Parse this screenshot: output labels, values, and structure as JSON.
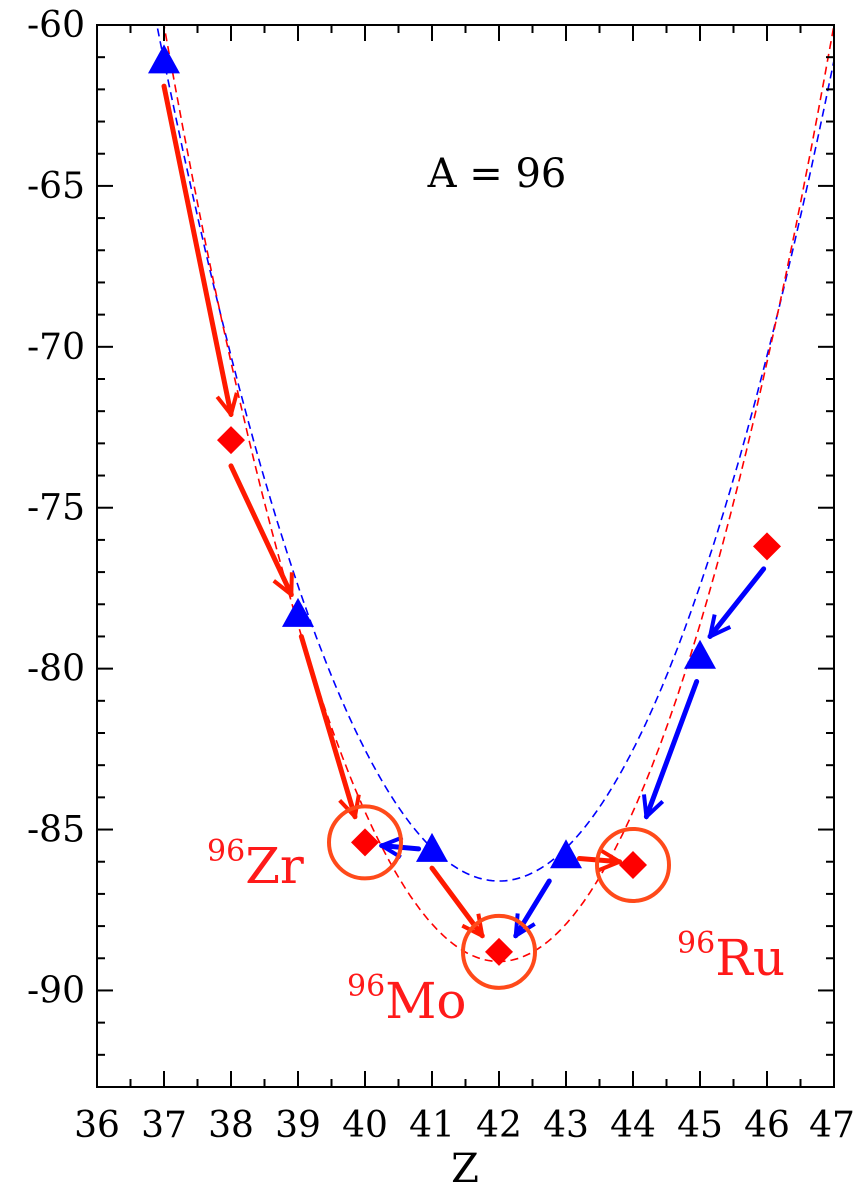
{
  "chart_data": {
    "type": "scatter",
    "title": "",
    "xlabel": "Z",
    "ylabel": "",
    "xlim": [
      36,
      47
    ],
    "ylim": [
      -93,
      -60
    ],
    "x_ticks": [
      36,
      37,
      38,
      39,
      40,
      41,
      42,
      43,
      44,
      45,
      46,
      47
    ],
    "y_ticks": [
      -60,
      -65,
      -70,
      -75,
      -80,
      -85,
      -90
    ],
    "x_tick_labels": [
      "36",
      "37",
      "38",
      "39",
      "40",
      "41",
      "42",
      "43",
      "44",
      "45",
      "46",
      "47"
    ],
    "y_tick_labels": [
      "-60",
      "-65",
      "-70",
      "-75",
      "-80",
      "-85",
      "-90"
    ],
    "grid": false,
    "annotation": "A = 96",
    "series": [
      {
        "marker": "triangle",
        "color": "#0000ff",
        "points": [
          {
            "x": 37,
            "y": -61.1
          },
          {
            "x": 39,
            "y": -78.3
          },
          {
            "x": 41,
            "y": -85.6
          },
          {
            "x": 43,
            "y": -85.8
          },
          {
            "x": 45,
            "y": -79.6
          }
        ]
      },
      {
        "marker": "diamond",
        "color": "#ff0000",
        "points": [
          {
            "x": 38,
            "y": -72.9
          },
          {
            "x": 40,
            "y": -85.4
          },
          {
            "x": 42,
            "y": -88.8
          },
          {
            "x": 44,
            "y": -86.1
          },
          {
            "x": 46,
            "y": -76.2
          }
        ]
      }
    ],
    "curves": [
      {
        "color": "#0000ff",
        "style": "dashed",
        "vertex_x": 42.0,
        "vertex_y": -86.6,
        "through": {
          "x": 37,
          "y": -61.1
        }
      },
      {
        "color": "#ff0000",
        "style": "dashed",
        "vertex_x": 42.0,
        "vertex_y": -89.1,
        "through": {
          "x": 37,
          "y": -60.0
        }
      }
    ],
    "arrows": [
      {
        "color": "#ff1a00",
        "from": [
          37,
          -61.9
        ],
        "to": [
          38,
          -72.1
        ]
      },
      {
        "color": "#ff1a00",
        "from": [
          38,
          -73.7
        ],
        "to": [
          38.9,
          -77.7
        ]
      },
      {
        "color": "#ff1a00",
        "from": [
          39.05,
          -79.0
        ],
        "to": [
          39.85,
          -84.6
        ]
      },
      {
        "color": "#ff1a00",
        "from": [
          41.0,
          -86.2
        ],
        "to": [
          41.75,
          -88.3
        ]
      },
      {
        "color": "#ff1a00",
        "from": [
          43.2,
          -85.9
        ],
        "to": [
          43.8,
          -86.0
        ]
      },
      {
        "color": "#0000ff",
        "from": [
          40.8,
          -85.6
        ],
        "to": [
          40.25,
          -85.5
        ]
      },
      {
        "color": "#0000ff",
        "from": [
          42.75,
          -86.6
        ],
        "to": [
          42.25,
          -88.3
        ]
      },
      {
        "color": "#0000ff",
        "from": [
          44.95,
          -80.4
        ],
        "to": [
          44.2,
          -84.6
        ]
      },
      {
        "color": "#0000ff",
        "from": [
          45.95,
          -76.9
        ],
        "to": [
          45.15,
          -79.0
        ]
      }
    ],
    "highlighted": [
      {
        "x": 40,
        "y": -85.4,
        "mass": "96",
        "symbol": "Zr"
      },
      {
        "x": 42,
        "y": -88.8,
        "mass": "96",
        "symbol": "Mo"
      },
      {
        "x": 44,
        "y": -86.1,
        "mass": "96",
        "symbol": "Ru"
      }
    ]
  },
  "colors": {
    "circle": "#ff4a1a",
    "nuclide_label": "#ff1a1a"
  }
}
